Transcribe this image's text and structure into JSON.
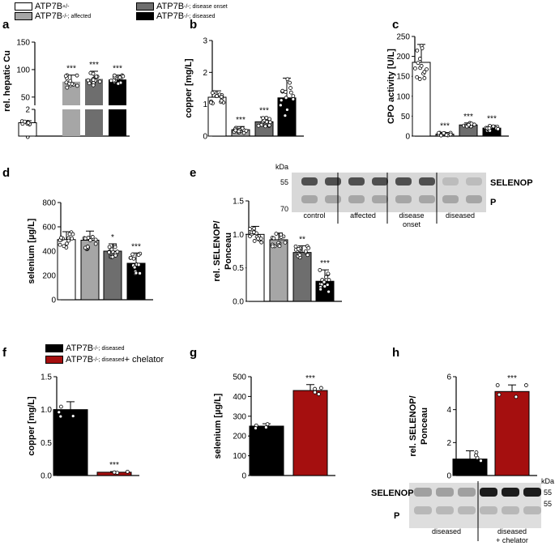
{
  "legend_top": [
    {
      "label": "ATP7B",
      "sup": "+/-",
      "color": "#ffffff"
    },
    {
      "label": "ATP7B",
      "sup": "-/-; affected",
      "color": "#a6a6a6"
    },
    {
      "label": "ATP7B",
      "sup": "-/-; disease onset",
      "color": "#6e6e6e"
    },
    {
      "label": "ATP7B",
      "sup": "-/-; diseased",
      "color": "#000000"
    }
  ],
  "legend_f": [
    {
      "label": "ATP7B",
      "sup": "-/-; diseased",
      "suffix": "",
      "color": "#000000"
    },
    {
      "label": "ATP7B",
      "sup": "-/-; diseased",
      "suffix": " + chelator",
      "color": "#a50f0f"
    }
  ],
  "colors": {
    "control": "#ffffff",
    "affected": "#a6a6a6",
    "onset": "#6e6e6e",
    "diseased": "#000000",
    "chelator": "#a50f0f"
  },
  "chart_data": [
    {
      "panel": "a",
      "type": "bar",
      "ylabel": "rel. hepatic Cu",
      "axis_break": true,
      "yticks_lower": [
        "0",
        "1",
        "2"
      ],
      "yticks_upper": [
        "50",
        "100",
        "150"
      ],
      "values": [
        1.0,
        78,
        83,
        82
      ],
      "errors": [
        0.15,
        12,
        14,
        8
      ],
      "sig": [
        "",
        "***",
        "***",
        "***"
      ]
    },
    {
      "panel": "b",
      "type": "bar",
      "ylabel": "copper [mg/L]",
      "ylim": [
        0,
        3
      ],
      "yticks": [
        "0",
        "1",
        "2",
        "3"
      ],
      "values": [
        1.22,
        0.2,
        0.45,
        1.2
      ],
      "errors": [
        0.2,
        0.1,
        0.15,
        0.62
      ],
      "sig": [
        "",
        "***",
        "***",
        ""
      ]
    },
    {
      "panel": "c",
      "type": "bar",
      "ylabel": "CPO activity [U/L]",
      "ylim": [
        0,
        250
      ],
      "yticks": [
        "0",
        "50",
        "100",
        "150",
        "200",
        "250"
      ],
      "values": [
        185,
        5,
        28,
        20
      ],
      "errors": [
        45,
        4,
        5,
        7
      ],
      "sig": [
        "",
        "***",
        "***",
        "***"
      ]
    },
    {
      "panel": "d",
      "type": "bar",
      "ylabel": "selenium [µg/L]",
      "ylim": [
        0,
        800
      ],
      "yticks": [
        "0",
        "200",
        "400",
        "600",
        "800"
      ],
      "values": [
        495,
        490,
        400,
        300
      ],
      "errors": [
        65,
        75,
        60,
        85
      ],
      "sig": [
        "",
        "",
        "*",
        "***"
      ]
    },
    {
      "panel": "e",
      "type": "bar",
      "ylabel": "rel. SELENOP/ Ponceau",
      "ylim": [
        0,
        1.5
      ],
      "yticks": [
        "0.0",
        "0.5",
        "1.0",
        "1.5"
      ],
      "values": [
        1.0,
        0.92,
        0.73,
        0.3
      ],
      "errors": [
        0.12,
        0.1,
        0.1,
        0.17
      ],
      "sig": [
        "",
        "",
        "**",
        "***"
      ]
    },
    {
      "panel": "f",
      "type": "bar",
      "ylabel": "copper [mg/L]",
      "ylim": [
        0,
        1.5
      ],
      "yticks": [
        "0.0",
        "0.5",
        "1.0",
        "1.5"
      ],
      "values": [
        1.0,
        0.05
      ],
      "errors": [
        0.12,
        0.01
      ],
      "sig": [
        "",
        "***"
      ]
    },
    {
      "panel": "g",
      "type": "bar",
      "ylabel": "selenium [µg/L]",
      "ylim": [
        0,
        500
      ],
      "yticks": [
        "0",
        "100",
        "200",
        "300",
        "400",
        "500"
      ],
      "values": [
        250,
        430
      ],
      "errors": [
        12,
        30
      ],
      "sig": [
        "",
        "***"
      ]
    },
    {
      "panel": "h",
      "type": "bar",
      "ylabel": "rel. SELENOP/ Ponceau",
      "ylim": [
        0,
        6
      ],
      "yticks": [
        "0",
        "2",
        "4",
        "6"
      ],
      "values": [
        1.0,
        5.1
      ],
      "errors": [
        0.5,
        0.4
      ],
      "sig": [
        "",
        "***"
      ]
    }
  ],
  "panel_labels": [
    "a",
    "b",
    "c",
    "d",
    "e",
    "f",
    "g",
    "h"
  ],
  "blot_e": {
    "kda": "kDa",
    "marker_top": "55",
    "marker_bottom": "70",
    "band": "SELENOP",
    "ponceau": "P",
    "groups": [
      "control",
      "affected",
      "disease onset",
      "diseased"
    ]
  },
  "blot_h": {
    "kda": "kDa",
    "marker_top": "55",
    "marker_bottom": "55",
    "band": "SELENOP",
    "ponceau": "P",
    "groups": [
      "diseased",
      "diseased + chelator"
    ]
  }
}
